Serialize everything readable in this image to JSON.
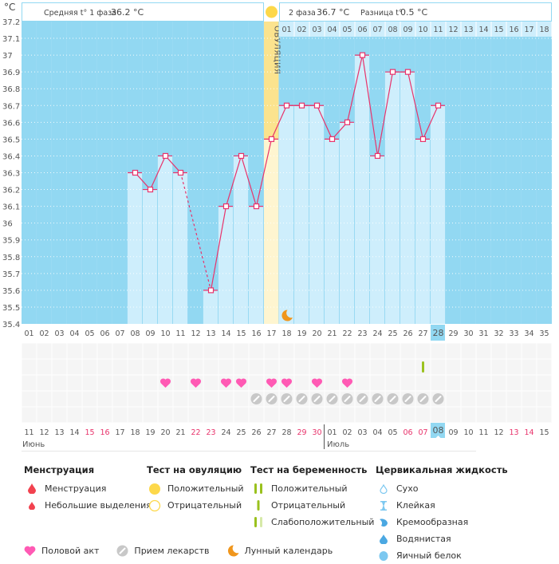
{
  "header": {
    "unit_label": "°C",
    "phase1_label": "Средняя t° 1 фаза",
    "phase1_value": "36.2 °C",
    "phase2_label": "2 фаза",
    "phase2_value": "36.7 °C",
    "diff_label": "Разница t°",
    "diff_value": "0.5 °C",
    "ovulation_label": "ОВУЛЯЦИЯ"
  },
  "chart_data": {
    "type": "line",
    "title": "",
    "xlabel": "",
    "ylabel": "°C",
    "ylim": [
      35.4,
      37.2
    ],
    "yticks": [
      "37.2",
      "37.1",
      "37",
      "36.9",
      "36.8",
      "36.7",
      "36.6",
      "36.5",
      "36.4",
      "36.3",
      "36.2",
      "36.1",
      "36",
      "35.9",
      "35.8",
      "35.7",
      "35.6",
      "35.5",
      "35.4"
    ],
    "cycle_days": [
      "01",
      "02",
      "03",
      "04",
      "05",
      "06",
      "07",
      "08",
      "09",
      "10",
      "11",
      "12",
      "13",
      "14",
      "15",
      "16",
      "17",
      "18",
      "19",
      "20",
      "21",
      "22",
      "23",
      "24",
      "25",
      "26",
      "27",
      "28",
      "29",
      "30",
      "31",
      "32",
      "33",
      "34",
      "35"
    ],
    "phase2_days": [
      "01",
      "02",
      "03",
      "04",
      "05",
      "06",
      "07",
      "08",
      "09",
      "10",
      "11",
      "12",
      "13",
      "14",
      "15",
      "16",
      "17",
      "18"
    ],
    "calendar_dates": [
      "11",
      "12",
      "13",
      "14",
      "15",
      "16",
      "17",
      "18",
      "19",
      "20",
      "21",
      "22",
      "23",
      "24",
      "25",
      "26",
      "27",
      "28",
      "29",
      "30",
      "01",
      "02",
      "03",
      "04",
      "05",
      "06",
      "07",
      "08",
      "09",
      "10",
      "11",
      "12",
      "13",
      "14",
      "15"
    ],
    "weekend_dates_index": [
      4,
      5,
      11,
      12,
      18,
      19,
      25,
      26,
      32,
      33
    ],
    "months": [
      {
        "label": "Июнь",
        "start_index": 0
      },
      {
        "label": "Июль",
        "start_index": 20
      }
    ],
    "today_index": 27,
    "ovulation_day": 17,
    "series": [
      {
        "name": "temperature",
        "points": [
          {
            "day": 8,
            "value": 36.3
          },
          {
            "day": 9,
            "value": 36.2
          },
          {
            "day": 10,
            "value": 36.4
          },
          {
            "day": 11,
            "value": 36.3
          },
          {
            "day": 13,
            "value": 35.6,
            "dashed_from_prev": true
          },
          {
            "day": 14,
            "value": 36.1
          },
          {
            "day": 15,
            "value": 36.4
          },
          {
            "day": 16,
            "value": 36.1
          },
          {
            "day": 17,
            "value": 36.5
          },
          {
            "day": 18,
            "value": 36.7
          },
          {
            "day": 19,
            "value": 36.7
          },
          {
            "day": 20,
            "value": 36.7
          },
          {
            "day": 21,
            "value": 36.5
          },
          {
            "day": 22,
            "value": 36.6
          },
          {
            "day": 23,
            "value": 37.0
          },
          {
            "day": 24,
            "value": 36.4
          },
          {
            "day": 25,
            "value": 36.9
          },
          {
            "day": 26,
            "value": 36.9
          },
          {
            "day": 27,
            "value": 36.5
          },
          {
            "day": 28,
            "value": 36.7
          }
        ]
      }
    ],
    "markers": {
      "intercourse_days": [
        10,
        12,
        14,
        15,
        17,
        18,
        20,
        22
      ],
      "medication_days": [
        16,
        17,
        18,
        19,
        20,
        21,
        22,
        23,
        24,
        25,
        26,
        27,
        28
      ],
      "pregnancy_test_negative_days": [
        27
      ],
      "moon_days": [
        18
      ]
    },
    "grid": true
  },
  "legend": {
    "menstruation": {
      "title": "Менструация",
      "items": [
        "Менструация",
        "Небольшие выделения"
      ]
    },
    "ovulation_test": {
      "title": "Тест на овуляцию",
      "items": [
        "Положительный",
        "Отрицательный"
      ]
    },
    "pregnancy_test": {
      "title": "Тест на беременность",
      "items": [
        "Положительный",
        "Отрицательный",
        "Слабоположительный"
      ]
    },
    "cervical_fluid": {
      "title": "Цервикальная жидкость",
      "items": [
        "Сухо",
        "Клейкая",
        "Кремообразная",
        "Водянистая",
        "Яичный белок"
      ]
    },
    "bottom": [
      "Половой акт",
      "Прием лекарств",
      "Лунный календарь"
    ]
  },
  "colors": {
    "plot_bg": "#92d8f2",
    "bar": "#ceeefc",
    "line": "#e8336b",
    "ovulation": "#fbe38e",
    "ovulation_light": "#fef5d0",
    "heart": "#ff5ab4",
    "pill": "#c8c8c8",
    "moon": "#f0961c",
    "weekend": "#e8336b",
    "today": "#92d8f2",
    "test": "#9ac11e"
  }
}
